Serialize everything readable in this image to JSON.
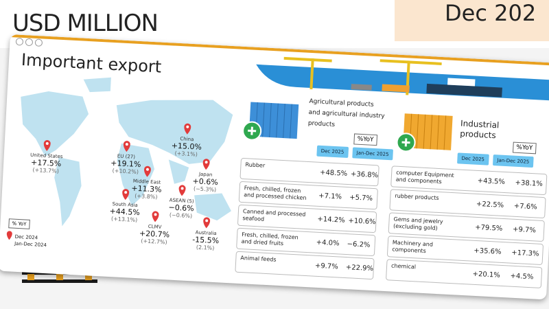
{
  "header": {
    "unit": "USD MILLION",
    "period": "Dec 202"
  },
  "card": {
    "title": "Important export"
  },
  "map": {
    "regions": [
      {
        "name": "United States",
        "dec": "+17.5%",
        "ytd": "(+13.7%)"
      },
      {
        "name": "EU (27)",
        "dec": "+19.1%",
        "ytd": "(+10.2%)"
      },
      {
        "name": "China",
        "dec": "+15.0%",
        "ytd": "(+3.1%)"
      },
      {
        "name": "Middle East",
        "dec": "+11.3%",
        "ytd": "(+3.8%)"
      },
      {
        "name": "Japan",
        "dec": "+0.6%",
        "ytd": "(−5.3%)"
      },
      {
        "name": "South Asia",
        "dec": "+44.5%",
        "ytd": "(+13.1%)"
      },
      {
        "name": "ASEAN (5)",
        "dec": "−0.6%",
        "ytd": "(−0.6%)"
      },
      {
        "name": "CLMV",
        "dec": "+20.7%",
        "ytd": "(+12.7%)"
      },
      {
        "name": "Australia",
        "dec": "-15.5%",
        "ytd": "(2.1%)"
      }
    ],
    "legend": {
      "badge": "% YoY",
      "dec": "Dec 2024",
      "ytd": "Jan-Dec 2024"
    }
  },
  "agricultural": {
    "title": [
      "Agricultural products",
      "and agricultural industry",
      "products"
    ],
    "badge": "%YoY",
    "columns": [
      "Dec 2025",
      "Jan-Dec 2025"
    ],
    "rows": [
      [
        "Rubber",
        "+48.5%",
        "+36.8%"
      ],
      [
        "Fresh, chilled, frozen and processed chicken",
        "+7.1%",
        "+5.7%"
      ],
      [
        "Canned and processed seafood",
        "+14.2%",
        "+10.6%"
      ],
      [
        "Fresh, chilled, frozen and dried fruits",
        "+4.0%",
        "−6.2%"
      ],
      [
        "Animal feeds",
        "+9.7%",
        "+22.9%"
      ]
    ]
  },
  "industrial": {
    "title": [
      "Industrial",
      "products"
    ],
    "badge": "%YoY",
    "columns": [
      "Dec 2025",
      "Jan-Dec 2025"
    ],
    "rows": [
      [
        "computer Equipment and components",
        "+43.5%",
        "+38.1%"
      ],
      [
        "rubber products",
        "+22.5%",
        "+7.6%"
      ],
      [
        "Gems and jewelry (excluding gold)",
        "+79.5%",
        "+9.7%"
      ],
      [
        "Machinery and components",
        "+35.6%",
        "+17.3%"
      ],
      [
        "chemical",
        "+20.1%",
        "+4.5%"
      ]
    ]
  }
}
